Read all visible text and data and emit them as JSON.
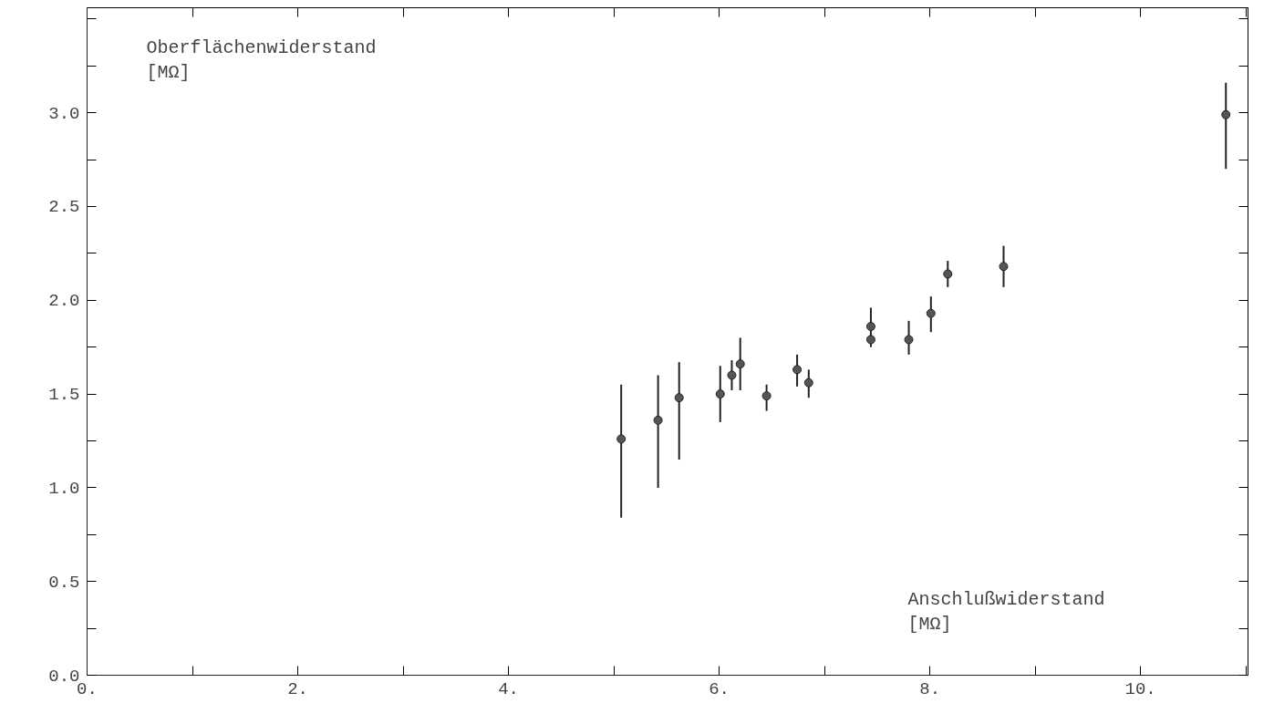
{
  "chart_data": {
    "type": "scatter",
    "xlabel": "Anschlußwiderstand\n[MΩ]",
    "ylabel": "Oberflächenwiderstand\n[MΩ]",
    "x": [
      5.07,
      5.42,
      5.62,
      6.01,
      6.12,
      6.2,
      6.45,
      6.74,
      6.85,
      7.44,
      7.44,
      7.8,
      8.01,
      8.17,
      8.7,
      10.81
    ],
    "series": [
      {
        "color": "#555555",
        "values": [
          1.26,
          1.36,
          1.48,
          1.5,
          1.6,
          1.66,
          1.49,
          1.63,
          1.56,
          1.86,
          1.79,
          1.79,
          1.93,
          2.14,
          2.18,
          2.99
        ],
        "errors": [
          [
            0.84,
            1.55
          ],
          [
            1.0,
            1.6
          ],
          [
            1.15,
            1.67
          ],
          [
            1.35,
            1.65
          ],
          [
            1.52,
            1.68
          ],
          [
            1.52,
            1.8
          ],
          [
            1.41,
            1.55
          ],
          [
            1.54,
            1.71
          ],
          [
            1.48,
            1.63
          ],
          [
            1.79,
            1.96
          ],
          [
            1.75,
            1.82
          ],
          [
            1.71,
            1.89
          ],
          [
            1.83,
            2.02
          ],
          [
            2.07,
            2.21
          ],
          [
            2.07,
            2.29
          ],
          [
            2.7,
            3.16
          ]
        ]
      }
    ],
    "xlim": [
      0,
      11.02
    ],
    "ylim": [
      0,
      3.56
    ],
    "xticks": [
      {
        "value": 0,
        "label": "0."
      },
      {
        "value": 1,
        "label": null
      },
      {
        "value": 2,
        "label": "2."
      },
      {
        "value": 3,
        "label": null
      },
      {
        "value": 4,
        "label": "4."
      },
      {
        "value": 5,
        "label": null
      },
      {
        "value": 6,
        "label": "6."
      },
      {
        "value": 7,
        "label": null
      },
      {
        "value": 8,
        "label": "8."
      },
      {
        "value": 9,
        "label": null
      },
      {
        "value": 10,
        "label": "10."
      },
      {
        "value": 11,
        "label": null
      }
    ],
    "yticks": [
      {
        "value": 0,
        "label": "0.0"
      },
      {
        "value": 0.25,
        "label": null
      },
      {
        "value": 0.5,
        "label": "0.5"
      },
      {
        "value": 0.75,
        "label": null
      },
      {
        "value": 1,
        "label": "1.0"
      },
      {
        "value": 1.25,
        "label": null
      },
      {
        "value": 1.5,
        "label": "1.5"
      },
      {
        "value": 1.75,
        "label": null
      },
      {
        "value": 2,
        "label": "2.0"
      },
      {
        "value": 2.25,
        "label": null
      },
      {
        "value": 2.5,
        "label": "2.5"
      },
      {
        "value": 2.75,
        "label": null
      },
      {
        "value": 3,
        "label": "3.0"
      },
      {
        "value": 3.25,
        "label": null
      },
      {
        "value": 3.5,
        "label": null
      }
    ],
    "grid": false,
    "marker": "circle"
  }
}
